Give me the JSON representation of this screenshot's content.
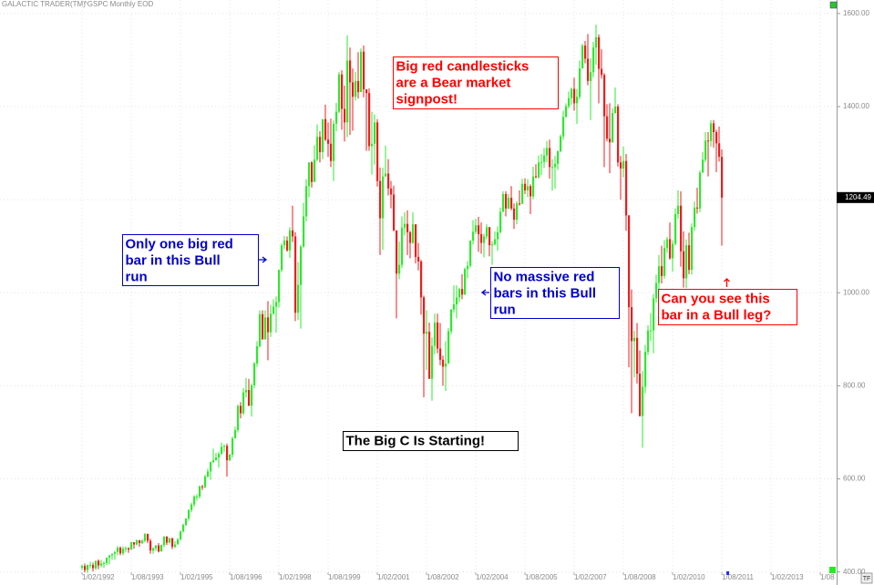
{
  "header": {
    "app": "GALACTIC TRADER(TM)",
    "symbol": "^GSPC Monthly EOD"
  },
  "chart_data": {
    "type": "candlestick",
    "grid": true,
    "up_color": "#2ee82e",
    "down_color": "#ee1c1c",
    "xlim": [
      "1989-08",
      "2015-02"
    ],
    "xticks": [
      {
        "value": "1992-02",
        "label": "1/02/1992"
      },
      {
        "value": "1993-08",
        "label": "1/08/1993"
      },
      {
        "value": "1995-02",
        "label": "1/02/1995"
      },
      {
        "value": "1996-08",
        "label": "1/08/1996"
      },
      {
        "value": "1998-02",
        "label": "1/02/1998"
      },
      {
        "value": "1999-08",
        "label": "1/08/1999"
      },
      {
        "value": "2001-02",
        "label": "1/02/2001"
      },
      {
        "value": "2002-08",
        "label": "1/08/2002"
      },
      {
        "value": "2004-02",
        "label": "1/02/2004"
      },
      {
        "value": "2005-08",
        "label": "1/08/2005"
      },
      {
        "value": "2007-02",
        "label": "1/02/2007"
      },
      {
        "value": "2008-08",
        "label": "1/08/2008"
      },
      {
        "value": "2010-02",
        "label": "1/02/2010"
      },
      {
        "value": "2011-08",
        "label": "1/08/2011"
      },
      {
        "value": "2013-02",
        "label": "1/02/2013"
      },
      {
        "value": "2014-08",
        "label": "1/08"
      }
    ],
    "ylim": [
      372,
      1629
    ],
    "yticks": [
      {
        "value": 400,
        "label": "400.00"
      },
      {
        "value": 600,
        "label": "600.00"
      },
      {
        "value": 800,
        "label": "800.00"
      },
      {
        "value": 1000,
        "label": "1000.00"
      },
      {
        "value": 1200,
        "label": "1200.00"
      },
      {
        "value": 1400,
        "label": "1400.00"
      },
      {
        "value": 1600,
        "label": "1600.00"
      }
    ],
    "x": [
      "1992-02",
      "1992-03",
      "1992-04",
      "1992-05",
      "1992-06",
      "1992-07",
      "1992-08",
      "1992-09",
      "1992-10",
      "1992-11",
      "1992-12",
      "1993-01",
      "1993-02",
      "1993-03",
      "1993-04",
      "1993-05",
      "1993-06",
      "1993-07",
      "1993-08",
      "1993-09",
      "1993-10",
      "1993-11",
      "1993-12",
      "1994-01",
      "1994-02",
      "1994-03",
      "1994-04",
      "1994-05",
      "1994-06",
      "1994-07",
      "1994-08",
      "1994-09",
      "1994-10",
      "1994-11",
      "1994-12",
      "1995-01",
      "1995-02",
      "1995-03",
      "1995-04",
      "1995-05",
      "1995-06",
      "1995-07",
      "1995-08",
      "1995-09",
      "1995-10",
      "1995-11",
      "1995-12",
      "1996-01",
      "1996-02",
      "1996-03",
      "1996-04",
      "1996-05",
      "1996-06",
      "1996-07",
      "1996-08",
      "1996-09",
      "1996-10",
      "1996-11",
      "1996-12",
      "1997-01",
      "1997-02",
      "1997-03",
      "1997-04",
      "1997-05",
      "1997-06",
      "1997-07",
      "1997-08",
      "1997-09",
      "1997-10",
      "1997-11",
      "1997-12",
      "1998-01",
      "1998-02",
      "1998-03",
      "1998-04",
      "1998-05",
      "1998-06",
      "1998-07",
      "1998-08",
      "1998-09",
      "1998-10",
      "1998-11",
      "1998-12",
      "1999-01",
      "1999-02",
      "1999-03",
      "1999-04",
      "1999-05",
      "1999-06",
      "1999-07",
      "1999-08",
      "1999-09",
      "1999-10",
      "1999-11",
      "1999-12",
      "2000-01",
      "2000-02",
      "2000-03",
      "2000-04",
      "2000-05",
      "2000-06",
      "2000-07",
      "2000-08",
      "2000-09",
      "2000-10",
      "2000-11",
      "2000-12",
      "2001-01",
      "2001-02",
      "2001-03",
      "2001-04",
      "2001-05",
      "2001-06",
      "2001-07",
      "2001-08",
      "2001-09",
      "2001-10",
      "2001-11",
      "2001-12",
      "2002-01",
      "2002-02",
      "2002-03",
      "2002-04",
      "2002-05",
      "2002-06",
      "2002-07",
      "2002-08",
      "2002-09",
      "2002-10",
      "2002-11",
      "2002-12",
      "2003-01",
      "2003-02",
      "2003-03",
      "2003-04",
      "2003-05",
      "2003-06",
      "2003-07",
      "2003-08",
      "2003-09",
      "2003-10",
      "2003-11",
      "2003-12",
      "2004-01",
      "2004-02",
      "2004-03",
      "2004-04",
      "2004-05",
      "2004-06",
      "2004-07",
      "2004-08",
      "2004-09",
      "2004-10",
      "2004-11",
      "2004-12",
      "2005-01",
      "2005-02",
      "2005-03",
      "2005-04",
      "2005-05",
      "2005-06",
      "2005-07",
      "2005-08",
      "2005-09",
      "2005-10",
      "2005-11",
      "2005-12",
      "2006-01",
      "2006-02",
      "2006-03",
      "2006-04",
      "2006-05",
      "2006-06",
      "2006-07",
      "2006-08",
      "2006-09",
      "2006-10",
      "2006-11",
      "2006-12",
      "2007-01",
      "2007-02",
      "2007-03",
      "2007-04",
      "2007-05",
      "2007-06",
      "2007-07",
      "2007-08",
      "2007-09",
      "2007-10",
      "2007-11",
      "2007-12",
      "2008-01",
      "2008-02",
      "2008-03",
      "2008-04",
      "2008-05",
      "2008-06",
      "2008-07",
      "2008-08",
      "2008-09",
      "2008-10",
      "2008-11",
      "2008-12",
      "2009-01",
      "2009-02",
      "2009-03",
      "2009-04",
      "2009-05",
      "2009-06",
      "2009-07",
      "2009-08",
      "2009-09",
      "2009-10",
      "2009-11",
      "2009-12",
      "2010-01",
      "2010-02",
      "2010-03",
      "2010-04",
      "2010-05",
      "2010-06",
      "2010-07",
      "2010-08",
      "2010-09",
      "2010-10",
      "2010-11",
      "2010-12",
      "2011-01",
      "2011-02",
      "2011-03",
      "2011-04",
      "2011-05",
      "2011-06",
      "2011-07",
      "2011-08"
    ],
    "open": [
      409,
      413,
      404,
      415,
      415,
      408,
      424,
      414,
      418,
      419,
      431,
      436,
      439,
      443,
      452,
      440,
      450,
      451,
      448,
      464,
      459,
      468,
      462,
      467,
      482,
      467,
      446,
      451,
      457,
      444,
      458,
      476,
      463,
      472,
      454,
      459,
      470,
      487,
      501,
      515,
      533,
      545,
      562,
      562,
      584,
      582,
      605,
      616,
      636,
      640,
      646,
      654,
      669,
      671,
      640,
      652,
      687,
      705,
      757,
      741,
      786,
      791,
      757,
      801,
      848,
      885,
      954,
      900,
      947,
      915,
      955,
      970,
      980,
      1049,
      1102,
      1112,
      1091,
      1134,
      1121,
      957,
      1017,
      1099,
      1164,
      1229,
      1280,
      1238,
      1286,
      1335,
      1302,
      1373,
      1329,
      1320,
      1283,
      1363,
      1389,
      1469,
      1395,
      1366,
      1499,
      1452,
      1421,
      1455,
      1431,
      1518,
      1437,
      1429,
      1315,
      1320,
      1366,
      1240,
      1160,
      1250,
      1256,
      1224,
      1211,
      1134,
      1041,
      1060,
      1140,
      1148,
      1130,
      1107,
      1147,
      1077,
      1067,
      990,
      912,
      916,
      815,
      886,
      936,
      880,
      856,
      841,
      848,
      917,
      964,
      975,
      990,
      1008,
      996,
      1051,
      1058,
      1112,
      1131,
      1145,
      1126,
      1107,
      1121,
      1141,
      1102,
      1104,
      1115,
      1130,
      1174,
      1212,
      1181,
      1204,
      1181,
      1157,
      1192,
      1191,
      1234,
      1220,
      1229,
      1207,
      1250,
      1248,
      1280,
      1281,
      1295,
      1311,
      1270,
      1270,
      1277,
      1304,
      1336,
      1378,
      1401,
      1418,
      1438,
      1407,
      1421,
      1482,
      1531,
      1503,
      1455,
      1474,
      1527,
      1549,
      1481,
      1468,
      1379,
      1331,
      1323,
      1386,
      1400,
      1280,
      1267,
      1283,
      1166,
      969,
      896,
      903,
      826,
      735,
      798,
      873,
      919,
      919,
      988,
      1021,
      1057,
      1036,
      1096,
      1115,
      1074,
      1105,
      1169,
      1187,
      1089,
      1031,
      1102,
      1049,
      1141,
      1183,
      1181,
      1258,
      1286,
      1327,
      1326,
      1364,
      1345,
      1321,
      1292
    ],
    "high": [
      416,
      418,
      416,
      422,
      420,
      418,
      427,
      426,
      423,
      425,
      434,
      440,
      445,
      456,
      455,
      455,
      455,
      453,
      465,
      464,
      470,
      469,
      470,
      483,
      482,
      471,
      453,
      458,
      462,
      459,
      477,
      477,
      474,
      474,
      466,
      473,
      489,
      504,
      515,
      535,
      549,
      565,
      567,
      586,
      587,
      609,
      622,
      637,
      665,
      656,
      658,
      678,
      674,
      676,
      654,
      691,
      712,
      760,
      765,
      795,
      817,
      815,
      805,
      851,
      896,
      962,
      962,
      962,
      982,
      974,
      986,
      992,
      1050,
      1106,
      1122,
      1121,
      1141,
      1187,
      1130,
      1066,
      1103,
      1193,
      1244,
      1280,
      1283,
      1317,
      1362,
      1347,
      1372,
      1404,
      1366,
      1374,
      1370,
      1408,
      1474,
      1478,
      1445,
      1553,
      1527,
      1482,
      1474,
      1517,
      1525,
      1531,
      1437,
      1439,
      1389,
      1383,
      1373,
      1269,
      1269,
      1316,
      1287,
      1240,
      1230,
      1134,
      1110,
      1164,
      1173,
      1177,
      1133,
      1173,
      1147,
      1107,
      1071,
      994,
      962,
      936,
      904,
      955,
      955,
      935,
      865,
      896,
      924,
      965,
      1016,
      1016,
      1011,
      1040,
      1054,
      1068,
      1112,
      1156,
      1159,
      1163,
      1151,
      1127,
      1147,
      1141,
      1111,
      1132,
      1143,
      1183,
      1218,
      1218,
      1212,
      1229,
      1192,
      1197,
      1220,
      1245,
      1246,
      1244,
      1233,
      1271,
      1276,
      1295,
      1298,
      1311,
      1326,
      1329,
      1287,
      1294,
      1306,
      1340,
      1391,
      1407,
      1432,
      1441,
      1462,
      1438,
      1499,
      1535,
      1541,
      1556,
      1504,
      1539,
      1576,
      1555,
      1523,
      1472,
      1405,
      1407,
      1396,
      1441,
      1405,
      1294,
      1314,
      1298,
      1167,
      1007,
      918,
      935,
      876,
      832,
      888,
      930,
      956,
      997,
      1039,
      1081,
      1101,
      1113,
      1120,
      1151,
      1113,
      1181,
      1220,
      1218,
      1132,
      1115,
      1129,
      1149,
      1196,
      1226,
      1263,
      1302,
      1345,
      1345,
      1371,
      1371,
      1350,
      1357,
      1308
    ],
    "low": [
      404,
      399,
      398,
      408,
      401,
      404,
      406,
      410,
      409,
      415,
      416,
      426,
      426,
      436,
      436,
      436,
      443,
      441,
      448,
      450,
      457,
      454,
      460,
      464,
      462,
      439,
      439,
      445,
      442,
      444,
      453,
      458,
      461,
      449,
      451,
      459,
      468,
      485,
      499,
      510,
      528,
      540,
      553,
      558,
      576,
      580,
      603,
      598,
      634,
      640,
      624,
      652,
      658,
      605,
      638,
      646,
      691,
      700,
      730,
      737,
      775,
      757,
      734,
      795,
      841,
      882,
      899,
      899,
      855,
      905,
      953,
      914,
      968,
      1044,
      1094,
      1088,
      1075,
      1109,
      939,
      941,
      923,
      1097,
      1153,
      1205,
      1226,
      1245,
      1282,
      1280,
      1287,
      1326,
      1292,
      1270,
      1240,
      1347,
      1386,
      1350,
      1325,
      1334,
      1339,
      1348,
      1413,
      1417,
      1432,
      1420,
      1305,
      1305,
      1254,
      1275,
      1228,
      1081,
      1092,
      1249,
      1209,
      1181,
      1132,
      945,
      1029,
      1053,
      1123,
      1081,
      1074,
      1105,
      1063,
      1048,
      953,
      775,
      834,
      815,
      768,
      868,
      870,
      844,
      800,
      789,
      848,
      911,
      957,
      945,
      980,
      986,
      995,
      1031,
      1054,
      1104,
      1126,
      1088,
      1084,
      1076,
      1115,
      1078,
      1060,
      1102,
      1090,
      1127,
      1173,
      1164,
      1180,
      1177,
      1137,
      1147,
      1187,
      1191,
      1212,
      1205,
      1169,
      1201,
      1246,
      1245,
      1253,
      1268,
      1280,
      1245,
      1219,
      1224,
      1264,
      1302,
      1329,
      1376,
      1396,
      1404,
      1391,
      1363,
      1416,
      1482,
      1493,
      1446,
      1371,
      1463,
      1490,
      1407,
      1460,
      1270,
      1325,
      1257,
      1322,
      1385,
      1271,
      1200,
      1248,
      1133,
      840,
      741,
      818,
      805,
      734,
      667,
      784,
      866,
      896,
      870,
      979,
      993,
      1020,
      1030,
      1086,
      1071,
      1045,
      1102,
      1159,
      1056,
      1011,
      1010,
      1040,
      1039,
      1133,
      1170,
      1173,
      1260,
      1281,
      1250,
      1314,
      1312,
      1259,
      1282,
      1101
    ],
    "close": [
      413,
      404,
      415,
      415,
      408,
      424,
      414,
      418,
      419,
      431,
      436,
      439,
      443,
      452,
      440,
      450,
      451,
      448,
      464,
      459,
      468,
      462,
      467,
      482,
      467,
      446,
      451,
      457,
      444,
      458,
      476,
      463,
      472,
      454,
      459,
      470,
      487,
      501,
      515,
      533,
      545,
      562,
      562,
      584,
      582,
      605,
      616,
      636,
      640,
      646,
      654,
      669,
      671,
      640,
      652,
      687,
      705,
      757,
      741,
      786,
      791,
      757,
      801,
      848,
      885,
      954,
      900,
      947,
      915,
      955,
      970,
      980,
      1049,
      1102,
      1112,
      1091,
      1134,
      1121,
      957,
      1017,
      1099,
      1164,
      1229,
      1280,
      1238,
      1286,
      1335,
      1302,
      1373,
      1329,
      1320,
      1283,
      1363,
      1389,
      1469,
      1395,
      1366,
      1499,
      1452,
      1421,
      1455,
      1431,
      1518,
      1437,
      1429,
      1315,
      1320,
      1366,
      1240,
      1160,
      1250,
      1256,
      1224,
      1211,
      1134,
      1041,
      1060,
      1140,
      1148,
      1130,
      1107,
      1147,
      1077,
      1067,
      990,
      912,
      916,
      815,
      886,
      936,
      880,
      856,
      841,
      848,
      917,
      964,
      975,
      990,
      1008,
      996,
      1051,
      1058,
      1112,
      1131,
      1145,
      1126,
      1107,
      1121,
      1141,
      1102,
      1104,
      1115,
      1130,
      1174,
      1212,
      1181,
      1204,
      1181,
      1157,
      1192,
      1191,
      1234,
      1220,
      1229,
      1207,
      1250,
      1248,
      1280,
      1281,
      1295,
      1311,
      1270,
      1270,
      1277,
      1304,
      1336,
      1378,
      1401,
      1418,
      1438,
      1407,
      1421,
      1482,
      1531,
      1503,
      1455,
      1474,
      1527,
      1549,
      1481,
      1468,
      1379,
      1331,
      1323,
      1386,
      1400,
      1280,
      1267,
      1283,
      1166,
      969,
      896,
      903,
      826,
      735,
      798,
      873,
      919,
      919,
      988,
      1021,
      1057,
      1036,
      1096,
      1115,
      1074,
      1105,
      1169,
      1187,
      1089,
      1031,
      1102,
      1049,
      1141,
      1183,
      1181,
      1258,
      1286,
      1327,
      1326,
      1364,
      1345,
      1321,
      1292,
      1204.49
    ],
    "annotations": [
      {
        "color": "#ff0000",
        "lines": [
          "Big red candlesticks",
          "are a Bear market",
          "signpost!"
        ]
      },
      {
        "color": "#0000cc",
        "lines": [
          "Only one big red",
          "bar in this Bull",
          "run"
        ]
      },
      {
        "color": "#0000cc",
        "lines": [
          "No massive red",
          "bars in this Bull",
          "run"
        ]
      },
      {
        "color": "#ff0000",
        "lines": [
          "Can you see this",
          "bar in a Bull leg?"
        ]
      },
      {
        "color": "#000000",
        "lines": [
          "The Big C Is Starting!"
        ]
      }
    ]
  }
}
